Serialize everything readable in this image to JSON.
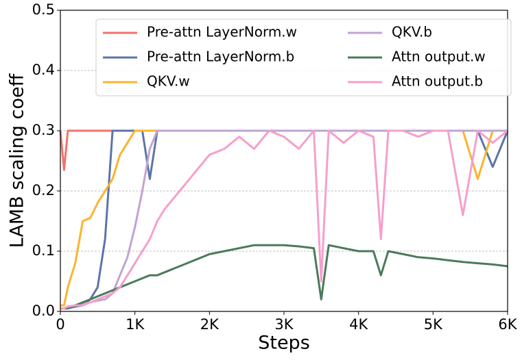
{
  "chart_data": {
    "type": "line",
    "xlabel": "Steps",
    "ylabel": "LAMB scaling coeff",
    "x": [
      0,
      50,
      100,
      200,
      300,
      400,
      500,
      600,
      700,
      800,
      900,
      1000,
      1100,
      1200,
      1300,
      1400,
      1600,
      1800,
      2000,
      2200,
      2400,
      2600,
      2800,
      3000,
      3200,
      3400,
      3500,
      3600,
      3800,
      4000,
      4200,
      4300,
      4400,
      4600,
      4800,
      5000,
      5200,
      5400,
      5600,
      5800,
      6000
    ],
    "xlim": [
      0,
      6000
    ],
    "xticks": [
      0,
      {
        "value": 1000,
        "label": "1K"
      },
      {
        "value": 2000,
        "label": "2K"
      },
      {
        "value": 3000,
        "label": "3K"
      },
      {
        "value": 4000,
        "label": "4K"
      },
      {
        "value": 5000,
        "label": "5K"
      },
      {
        "value": 6000,
        "label": "6K"
      }
    ],
    "ylim": [
      0,
      0.5
    ],
    "yticks": [
      {
        "value": 0,
        "label": "0.0"
      },
      0.1,
      0.2,
      0.3,
      0.4,
      0.5
    ],
    "grid": true,
    "legend": "upper right",
    "series": [
      {
        "name": "Pre-attn LayerNorm.w",
        "color": "#f4716b",
        "values": [
          0.3,
          0.235,
          0.3,
          0.3,
          0.3,
          0.3,
          0.3,
          0.3,
          0.3,
          0.3,
          0.3,
          0.3,
          0.3,
          0.3,
          0.3,
          0.3,
          0.3,
          0.3,
          0.3,
          0.3,
          0.3,
          0.3,
          0.3,
          0.3,
          0.3,
          0.3,
          0.3,
          0.3,
          0.3,
          0.3,
          0.3,
          0.3,
          0.3,
          0.3,
          0.3,
          0.3,
          0.3,
          0.3,
          0.3,
          0.3,
          0.3
        ]
      },
      {
        "name": "Pre-attn LayerNorm.b",
        "color": "#5b74a8",
        "values": [
          0.005,
          0.005,
          0.005,
          0.008,
          0.01,
          0.02,
          0.04,
          0.12,
          0.3,
          0.3,
          0.3,
          0.3,
          0.3,
          0.22,
          0.3,
          0.3,
          0.3,
          0.3,
          0.3,
          0.3,
          0.3,
          0.3,
          0.3,
          0.3,
          0.3,
          0.3,
          0.3,
          0.3,
          0.3,
          0.3,
          0.3,
          0.3,
          0.3,
          0.3,
          0.3,
          0.3,
          0.3,
          0.3,
          0.3,
          0.24,
          0.3
        ]
      },
      {
        "name": "QKV.w",
        "color": "#fbb42e",
        "values": [
          0.01,
          0.01,
          0.04,
          0.08,
          0.15,
          0.155,
          0.18,
          0.2,
          0.22,
          0.26,
          0.28,
          0.3,
          0.3,
          0.3,
          0.3,
          0.3,
          0.3,
          0.3,
          0.3,
          0.3,
          0.3,
          0.3,
          0.3,
          0.3,
          0.3,
          0.3,
          0.3,
          0.3,
          0.3,
          0.3,
          0.3,
          0.3,
          0.3,
          0.3,
          0.3,
          0.3,
          0.3,
          0.3,
          0.22,
          0.3,
          0.3
        ]
      },
      {
        "name": "QKV.b",
        "color": "#c1a3d3",
        "values": [
          0.005,
          0.005,
          0.008,
          0.01,
          0.012,
          0.015,
          0.018,
          0.02,
          0.03,
          0.06,
          0.09,
          0.14,
          0.2,
          0.27,
          0.3,
          0.3,
          0.3,
          0.3,
          0.3,
          0.3,
          0.3,
          0.3,
          0.3,
          0.3,
          0.3,
          0.3,
          0.3,
          0.3,
          0.3,
          0.3,
          0.3,
          0.3,
          0.3,
          0.3,
          0.3,
          0.3,
          0.3,
          0.3,
          0.3,
          0.3,
          0.3
        ]
      },
      {
        "name": "Attn output.w",
        "color": "#4a7a5a",
        "values": [
          0.005,
          0.005,
          0.005,
          0.01,
          0.015,
          0.02,
          0.025,
          0.03,
          0.035,
          0.04,
          0.045,
          0.05,
          0.055,
          0.06,
          0.06,
          0.065,
          0.075,
          0.085,
          0.095,
          0.1,
          0.105,
          0.11,
          0.11,
          0.11,
          0.108,
          0.105,
          0.02,
          0.11,
          0.105,
          0.1,
          0.1,
          0.06,
          0.1,
          0.095,
          0.09,
          0.088,
          0.085,
          0.082,
          0.08,
          0.078,
          0.075
        ]
      },
      {
        "name": "Attn output.b",
        "color": "#f59fcc",
        "values": [
          0.005,
          0.005,
          0.008,
          0.01,
          0.01,
          0.015,
          0.02,
          0.025,
          0.03,
          0.04,
          0.06,
          0.08,
          0.1,
          0.12,
          0.15,
          0.17,
          0.2,
          0.23,
          0.26,
          0.27,
          0.29,
          0.27,
          0.3,
          0.29,
          0.27,
          0.3,
          0.05,
          0.3,
          0.28,
          0.3,
          0.29,
          0.12,
          0.3,
          0.3,
          0.29,
          0.3,
          0.3,
          0.16,
          0.3,
          0.28,
          0.3
        ]
      }
    ]
  }
}
